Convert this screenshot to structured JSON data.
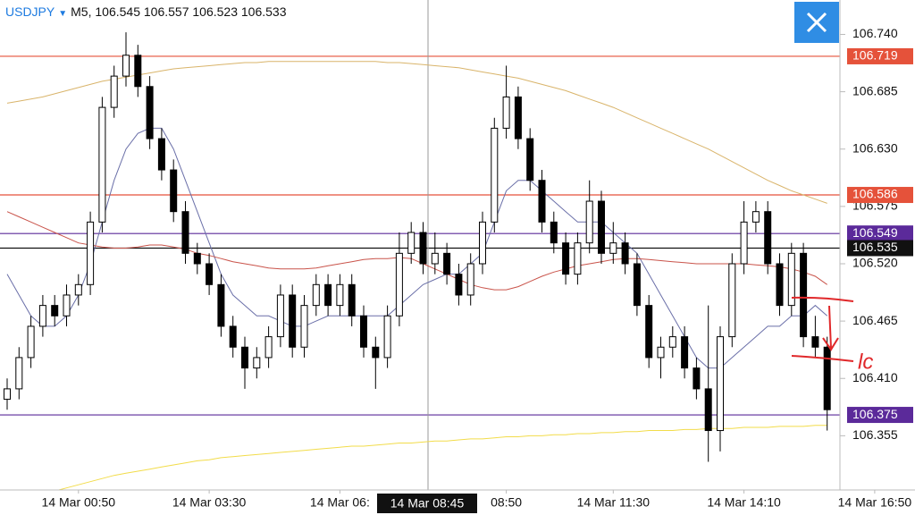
{
  "chart_data": {
    "type": "candlestick",
    "header": {
      "symbol": "USDJPY",
      "timeframe": "M5,",
      "open": "106.545",
      "high": "106.557",
      "low": "106.523",
      "close": "106.533"
    },
    "crosshair_label": "14 Mar 08:45",
    "annotation": "lc",
    "categories": [
      null,
      null,
      null,
      null,
      null,
      null,
      "14 Mar 00:50",
      null,
      null,
      null,
      null,
      null,
      null,
      null,
      null,
      null,
      null,
      "14 Mar 03:30",
      null,
      null,
      null,
      null,
      null,
      null,
      null,
      null,
      null,
      null,
      "14 Mar 06:",
      null,
      null,
      null,
      null,
      null,
      null,
      null,
      null,
      null,
      null,
      null,
      null,
      null,
      "08:50",
      null,
      null,
      null,
      null,
      null,
      null,
      null,
      null,
      "14 Mar 11:30",
      null,
      null,
      null,
      null,
      null,
      null,
      null,
      null,
      null,
      null,
      "14 Mar 14:10",
      null,
      null,
      null,
      null,
      null,
      null,
      null,
      null,
      null,
      null,
      "14 Mar 16:50"
    ],
    "open": [
      106.39,
      106.4,
      106.43,
      106.46,
      106.48,
      106.47,
      106.49,
      106.5,
      106.56,
      106.67,
      106.7,
      106.72,
      106.69,
      106.64,
      106.61,
      106.57,
      106.53,
      106.52,
      106.5,
      106.46,
      106.44,
      106.42,
      106.43,
      106.45,
      106.49,
      106.44,
      106.48,
      106.5,
      106.48,
      106.5,
      106.47,
      106.44,
      106.43,
      106.47,
      106.53,
      106.55,
      106.52,
      106.53,
      106.51,
      106.49,
      106.52,
      106.56,
      106.65,
      106.68,
      106.64,
      106.6,
      106.56,
      106.54,
      106.51,
      106.54,
      106.58,
      106.53,
      106.54,
      106.52,
      106.48,
      106.43,
      106.44,
      106.45,
      106.42,
      106.4,
      106.36,
      106.45,
      106.52,
      106.56,
      106.57,
      106.52,
      106.48,
      106.53,
      106.45,
      106.44,
      null,
      null,
      null,
      null
    ],
    "high": [
      106.41,
      106.44,
      106.47,
      106.49,
      106.49,
      106.5,
      106.51,
      106.57,
      106.68,
      106.71,
      106.742,
      106.73,
      106.7,
      106.65,
      106.62,
      106.58,
      106.54,
      106.53,
      106.51,
      106.47,
      106.45,
      106.44,
      106.46,
      106.5,
      106.5,
      106.49,
      106.51,
      106.51,
      106.51,
      106.51,
      106.48,
      106.45,
      106.48,
      106.55,
      106.56,
      106.56,
      106.55,
      106.54,
      106.52,
      106.53,
      106.57,
      106.66,
      106.71,
      106.69,
      106.65,
      106.61,
      106.57,
      106.55,
      106.55,
      106.6,
      106.59,
      106.56,
      106.55,
      106.53,
      106.49,
      106.45,
      106.46,
      106.46,
      106.43,
      106.48,
      106.46,
      106.53,
      106.58,
      106.58,
      106.58,
      106.53,
      106.54,
      106.54,
      106.47,
      106.45,
      null,
      null,
      null,
      null
    ],
    "low": [
      106.38,
      106.39,
      106.42,
      106.45,
      106.46,
      106.46,
      106.48,
      106.49,
      106.55,
      106.66,
      106.69,
      106.68,
      106.63,
      106.6,
      106.56,
      106.52,
      106.51,
      106.49,
      106.45,
      106.43,
      106.4,
      106.41,
      106.42,
      106.44,
      106.43,
      106.43,
      106.47,
      106.47,
      106.47,
      106.46,
      106.43,
      106.4,
      106.42,
      106.46,
      106.52,
      106.51,
      106.51,
      106.5,
      106.48,
      106.48,
      106.51,
      106.55,
      106.64,
      106.63,
      106.59,
      106.55,
      106.53,
      106.5,
      106.5,
      106.53,
      106.52,
      106.52,
      106.51,
      106.47,
      106.42,
      106.41,
      106.43,
      106.41,
      106.39,
      106.33,
      106.34,
      106.44,
      106.51,
      106.55,
      106.51,
      106.47,
      106.47,
      106.44,
      106.43,
      106.36,
      null,
      null,
      null,
      null
    ],
    "close": [
      106.4,
      106.43,
      106.46,
      106.48,
      106.47,
      106.49,
      106.5,
      106.56,
      106.67,
      106.7,
      106.72,
      106.69,
      106.64,
      106.61,
      106.57,
      106.53,
      106.52,
      106.5,
      106.46,
      106.44,
      106.42,
      106.43,
      106.45,
      106.49,
      106.44,
      106.48,
      106.5,
      106.48,
      106.5,
      106.47,
      106.44,
      106.43,
      106.47,
      106.53,
      106.55,
      106.52,
      106.53,
      106.51,
      106.49,
      106.52,
      106.56,
      106.65,
      106.68,
      106.64,
      106.6,
      106.56,
      106.54,
      106.51,
      106.54,
      106.58,
      106.53,
      106.54,
      106.52,
      106.48,
      106.43,
      106.44,
      106.45,
      106.42,
      106.4,
      106.36,
      106.45,
      106.52,
      106.56,
      106.57,
      106.52,
      106.48,
      106.53,
      106.45,
      106.44,
      106.38,
      null,
      null,
      null,
      null
    ],
    "up_color": "#ffffff",
    "down_color": "#000000",
    "overlays": [
      {
        "color": "#6a6fa8",
        "values": [
          106.51,
          106.49,
          106.47,
          106.46,
          106.46,
          106.47,
          106.49,
          106.52,
          106.56,
          106.6,
          106.63,
          106.645,
          106.65,
          106.65,
          106.63,
          106.6,
          106.57,
          106.54,
          106.51,
          106.49,
          106.48,
          106.47,
          106.47,
          106.465,
          106.46,
          106.46,
          106.465,
          106.47,
          106.47,
          106.47,
          106.47,
          106.47,
          106.47,
          106.48,
          106.49,
          106.5,
          106.505,
          106.51,
          106.51,
          106.52,
          106.53,
          106.56,
          106.59,
          106.6,
          106.6,
          106.59,
          106.58,
          106.57,
          106.56,
          106.56,
          106.56,
          106.55,
          106.54,
          106.53,
          106.51,
          106.49,
          106.47,
          106.45,
          106.43,
          106.42,
          106.42,
          106.43,
          106.44,
          106.45,
          106.46,
          106.46,
          106.47,
          106.47,
          106.48,
          106.47,
          null,
          null,
          null,
          null
        ]
      },
      {
        "color": "#c9534a",
        "values": [
          106.57,
          106.565,
          106.56,
          106.555,
          106.55,
          106.545,
          106.54,
          106.538,
          106.536,
          106.535,
          106.535,
          106.536,
          106.538,
          106.538,
          106.536,
          106.534,
          106.53,
          106.528,
          106.525,
          106.522,
          106.52,
          106.518,
          106.516,
          106.515,
          106.515,
          106.515,
          106.516,
          106.518,
          106.52,
          106.522,
          106.524,
          106.525,
          106.525,
          106.526,
          106.525,
          106.52,
          106.515,
          106.51,
          106.505,
          106.5,
          106.497,
          106.495,
          106.495,
          106.498,
          106.503,
          106.508,
          106.512,
          106.515,
          106.518,
          106.52,
          106.522,
          106.524,
          106.525,
          106.525,
          106.524,
          106.523,
          106.522,
          106.521,
          106.52,
          106.52,
          106.52,
          106.52,
          106.52,
          106.519,
          106.518,
          106.517,
          106.515,
          106.512,
          106.508,
          106.5,
          null,
          null,
          null,
          null
        ]
      },
      {
        "color": "#d9b46a",
        "values": [
          106.674,
          106.676,
          106.678,
          106.68,
          106.683,
          106.686,
          106.689,
          106.692,
          106.695,
          106.697,
          106.699,
          106.701,
          106.703,
          106.705,
          106.707,
          106.708,
          106.709,
          106.71,
          106.711,
          106.712,
          106.713,
          106.713,
          106.714,
          106.714,
          106.714,
          106.714,
          106.714,
          106.714,
          106.714,
          106.714,
          106.714,
          106.714,
          106.713,
          106.713,
          106.712,
          106.711,
          106.71,
          106.709,
          106.708,
          106.706,
          106.704,
          106.702,
          106.7,
          106.698,
          106.695,
          106.692,
          106.689,
          106.686,
          106.682,
          106.678,
          106.674,
          106.67,
          106.665,
          106.66,
          106.655,
          106.65,
          106.645,
          106.64,
          106.635,
          106.63,
          106.624,
          106.618,
          106.612,
          106.606,
          106.6,
          106.595,
          106.59,
          106.586,
          106.582,
          106.578,
          null,
          null,
          null,
          null
        ]
      },
      {
        "color": "#f2dc4a",
        "values": [
          null,
          null,
          null,
          null,
          106.302,
          106.305,
          106.308,
          106.311,
          106.314,
          106.317,
          106.319,
          106.321,
          106.323,
          106.325,
          106.327,
          106.329,
          106.331,
          106.332,
          106.334,
          106.335,
          106.336,
          106.337,
          106.338,
          106.339,
          106.34,
          106.341,
          106.342,
          106.343,
          106.344,
          106.345,
          106.345,
          106.346,
          106.347,
          106.348,
          106.348,
          106.349,
          106.35,
          106.35,
          106.351,
          106.352,
          106.352,
          106.353,
          106.354,
          106.354,
          106.355,
          106.355,
          106.356,
          106.356,
          106.357,
          106.357,
          106.358,
          106.358,
          106.359,
          106.359,
          106.36,
          106.36,
          106.36,
          106.361,
          106.361,
          106.362,
          106.362,
          106.362,
          106.363,
          106.363,
          106.363,
          106.364,
          106.364,
          106.364,
          106.365,
          106.365,
          null,
          null,
          null,
          null
        ]
      }
    ],
    "levels": [
      {
        "value": 106.719,
        "color": "#e5523a"
      },
      {
        "value": 106.586,
        "color": "#e5523a"
      },
      {
        "value": 106.549,
        "color": "#5b2a9a"
      },
      {
        "value": 106.535,
        "color": "#111111"
      },
      {
        "value": 106.375,
        "color": "#5b2a9a"
      }
    ],
    "ylim": [
      106.303,
      106.773
    ],
    "yticks": [
      {
        "value": 106.74,
        "label": "106.740"
      },
      106.685,
      {
        "value": 106.63,
        "label": "106.630"
      },
      106.575,
      {
        "value": 106.52,
        "label": "106.520"
      },
      106.465,
      {
        "value": 106.41,
        "label": "106.410"
      },
      106.355
    ]
  }
}
